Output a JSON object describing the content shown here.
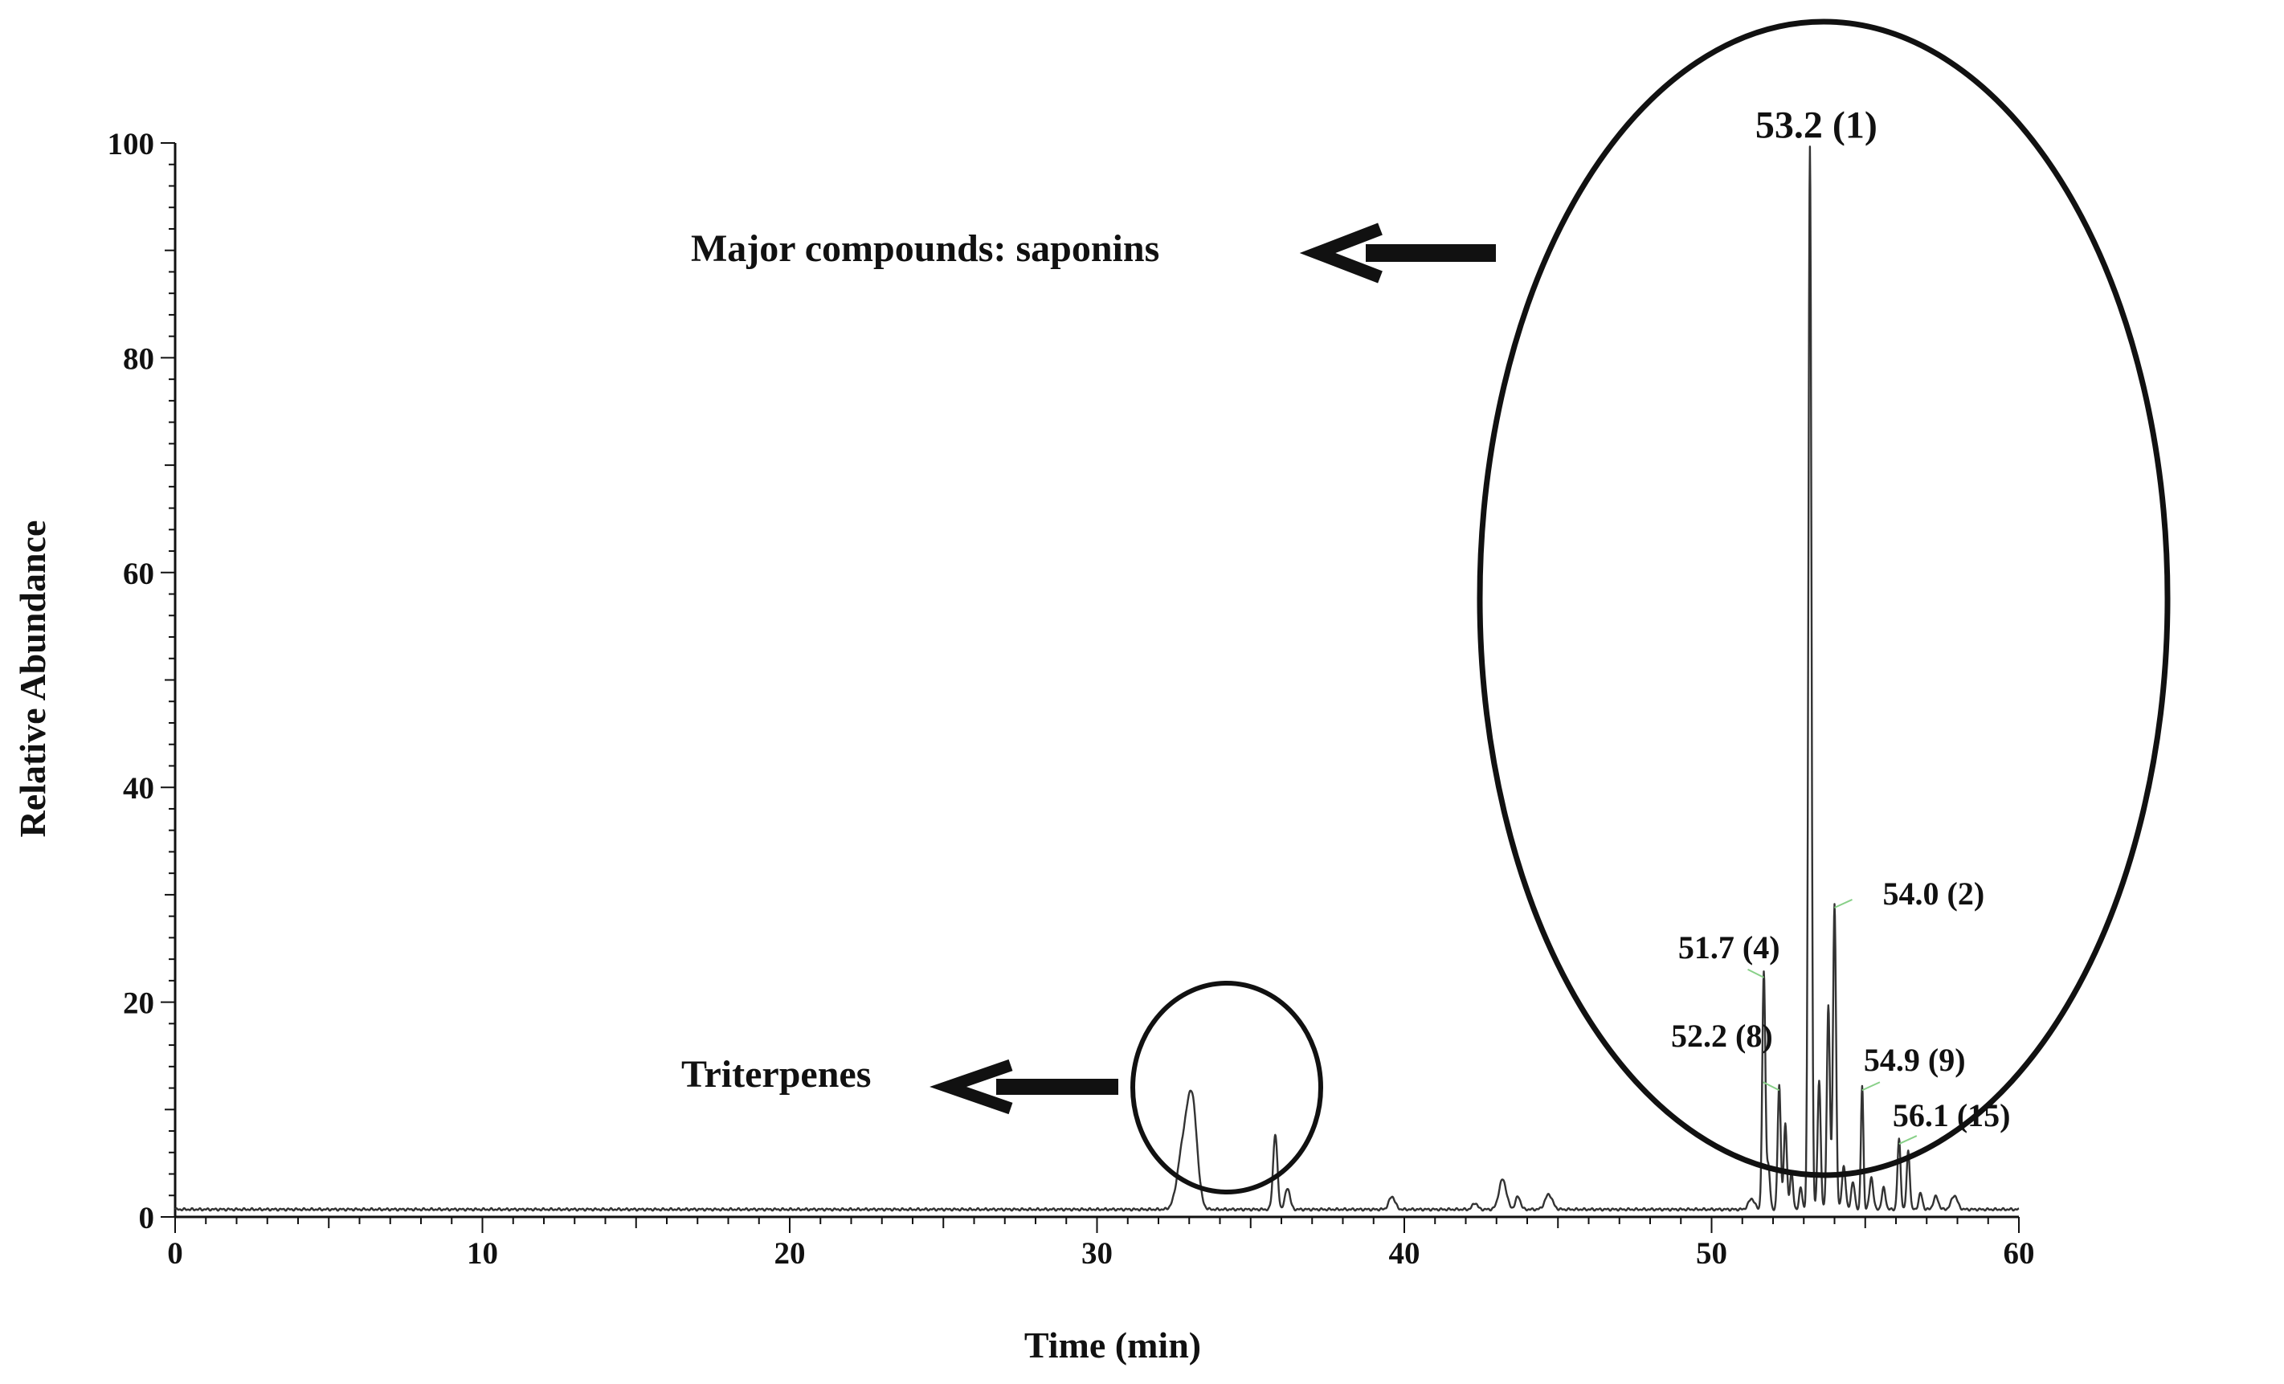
{
  "chart_data": {
    "type": "line",
    "title": "",
    "xlabel": "Time (min)",
    "ylabel": "Relative Abundance",
    "xlim": [
      0,
      60
    ],
    "ylim": [
      0,
      100
    ],
    "x_ticks": [
      "0",
      "10",
      "20",
      "30",
      "40",
      "50",
      "60"
    ],
    "y_ticks": [
      "0",
      "20",
      "40",
      "60",
      "80",
      "100"
    ],
    "grid": false,
    "legend": "none",
    "line_color": "#333333",
    "peak_label_tick_color": "#88d088",
    "baseline": 0.7,
    "peaks": [
      {
        "t": 32.8,
        "h": 5.5,
        "w": 0.18
      },
      {
        "t": 33.1,
        "h": 9.5,
        "w": 0.16
      },
      {
        "t": 35.8,
        "h": 7.0,
        "w": 0.07
      },
      {
        "t": 36.2,
        "h": 2.0,
        "w": 0.08
      },
      {
        "t": 39.6,
        "h": 1.2,
        "w": 0.1
      },
      {
        "t": 42.3,
        "h": 0.6,
        "w": 0.08
      },
      {
        "t": 43.2,
        "h": 2.8,
        "w": 0.12
      },
      {
        "t": 43.7,
        "h": 1.2,
        "w": 0.08
      },
      {
        "t": 44.7,
        "h": 1.4,
        "w": 0.12
      },
      {
        "t": 51.3,
        "h": 1.0,
        "w": 0.1
      },
      {
        "t": 51.7,
        "h": 22.0,
        "w": 0.05
      },
      {
        "t": 51.85,
        "h": 4.0,
        "w": 0.05
      },
      {
        "t": 52.2,
        "h": 11.5,
        "w": 0.05
      },
      {
        "t": 52.4,
        "h": 8.0,
        "w": 0.05
      },
      {
        "t": 52.6,
        "h": 3.5,
        "w": 0.05
      },
      {
        "t": 52.9,
        "h": 2.0,
        "w": 0.05
      },
      {
        "t": 53.2,
        "h": 99.0,
        "w": 0.05
      },
      {
        "t": 53.5,
        "h": 12.0,
        "w": 0.05
      },
      {
        "t": 53.8,
        "h": 19.0,
        "w": 0.05
      },
      {
        "t": 54.0,
        "h": 28.5,
        "w": 0.05
      },
      {
        "t": 54.3,
        "h": 4.0,
        "w": 0.06
      },
      {
        "t": 54.6,
        "h": 2.5,
        "w": 0.06
      },
      {
        "t": 54.9,
        "h": 11.5,
        "w": 0.04
      },
      {
        "t": 55.2,
        "h": 3.0,
        "w": 0.06
      },
      {
        "t": 55.6,
        "h": 2.0,
        "w": 0.06
      },
      {
        "t": 56.1,
        "h": 6.5,
        "w": 0.05
      },
      {
        "t": 56.4,
        "h": 5.5,
        "w": 0.05
      },
      {
        "t": 56.8,
        "h": 1.5,
        "w": 0.06
      },
      {
        "t": 57.3,
        "h": 1.2,
        "w": 0.08
      },
      {
        "t": 57.9,
        "h": 1.3,
        "w": 0.1
      }
    ],
    "peak_labels": [
      {
        "t": 53.2,
        "h": 99.0,
        "text": "53.2 (1)"
      },
      {
        "t": 54.0,
        "h": 28.5,
        "text": "54.0 (2)"
      },
      {
        "t": 51.7,
        "h": 22.0,
        "text": "51.7 (4)"
      },
      {
        "t": 52.2,
        "h": 11.5,
        "text": "52.2 (8)"
      },
      {
        "t": 54.9,
        "h": 11.5,
        "text": "54.9 (9)"
      },
      {
        "t": 56.1,
        "h": 6.5,
        "text": "56.1 (15)"
      }
    ],
    "annotations": [
      {
        "text": "Major compounds: saponins",
        "shape": "ellipse",
        "region": "right",
        "arrow": "left"
      },
      {
        "text": "Triterpenes",
        "shape": "circle",
        "region": "middle",
        "arrow": "left"
      }
    ]
  }
}
